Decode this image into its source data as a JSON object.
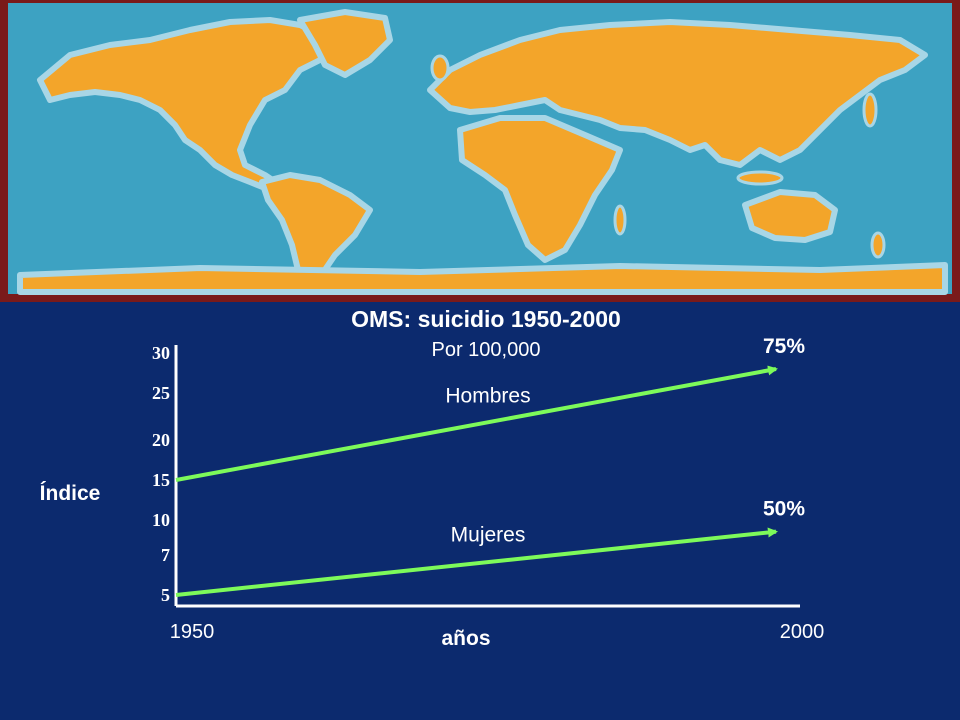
{
  "map": {
    "alt": "",
    "colors": {
      "frame": "#7a1a1a",
      "ocean": "#3da2c2",
      "coast": "#a8d6e6",
      "land": "#f3a52a",
      "land_edge": "#e06b1a",
      "ice": "#f3a52a"
    }
  },
  "colors": {
    "background": "#0c2a6e",
    "line": "#7dfa5a",
    "axis": "#ffffff",
    "text": "#ffffff"
  },
  "chart_data": {
    "type": "line",
    "title": "OMS: suicidio 1950-2000",
    "subtitle": "Por 100,000",
    "xlabel": "años",
    "ylabel": "Índice",
    "x": [
      1950,
      2000
    ],
    "x_ticks": [
      "1950",
      "2000"
    ],
    "y_ticks": [
      "30",
      "25",
      "20",
      "15",
      "10",
      "7",
      "5"
    ],
    "series": [
      {
        "name": "Hombres",
        "x": [
          1950,
          2000
        ],
        "y": [
          15,
          28
        ],
        "annotation": "75%"
      },
      {
        "name": "Mujeres",
        "x": [
          1950,
          2000
        ],
        "y": [
          5,
          9
        ],
        "annotation": "50%"
      }
    ],
    "grid": false,
    "legend": "none"
  }
}
